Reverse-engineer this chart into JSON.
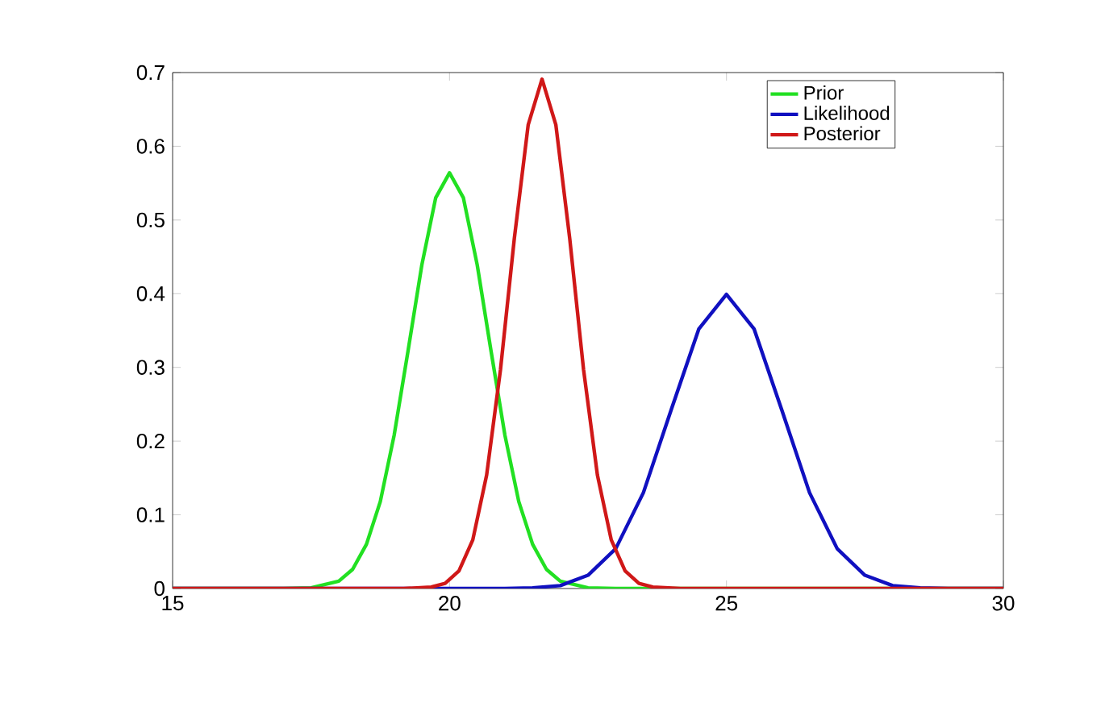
{
  "chart_data": {
    "type": "line",
    "xlim": [
      15,
      30
    ],
    "ylim": [
      0,
      0.7
    ],
    "xticks": [
      15,
      20,
      25,
      30
    ],
    "yticks": [
      0,
      0.1,
      0.2,
      0.3,
      0.4,
      0.5,
      0.6,
      0.7
    ],
    "legend": "top right",
    "grid": false,
    "series": [
      {
        "name": "Prior",
        "color": "#22e022",
        "x": [
          15,
          17,
          17.5,
          18,
          18.25,
          18.5,
          18.75,
          19,
          19.25,
          19.5,
          19.75,
          20,
          20.25,
          20.5,
          20.75,
          21,
          21.25,
          21.5,
          21.75,
          22,
          22.5,
          23,
          30
        ],
        "values": [
          0,
          0,
          0.001,
          0.01,
          0.026,
          0.06,
          0.118,
          0.208,
          0.322,
          0.439,
          0.53,
          0.564,
          0.53,
          0.439,
          0.322,
          0.208,
          0.118,
          0.06,
          0.026,
          0.01,
          0.001,
          0,
          0
        ]
      },
      {
        "name": "Likelihood",
        "color": "#1010c0",
        "x": [
          15,
          20,
          21,
          21.5,
          22,
          22.5,
          23,
          23.5,
          24,
          24.5,
          25,
          25.5,
          26,
          26.5,
          27,
          27.5,
          28,
          28.5,
          29,
          30
        ],
        "values": [
          0,
          0,
          0,
          0.001,
          0.004,
          0.018,
          0.054,
          0.13,
          0.242,
          0.352,
          0.399,
          0.352,
          0.242,
          0.13,
          0.054,
          0.018,
          0.004,
          0.001,
          0,
          0
        ]
      },
      {
        "name": "Posterior",
        "color": "#d01818",
        "x": [
          15,
          19.17,
          19.67,
          19.92,
          20.17,
          20.42,
          20.67,
          20.92,
          21.17,
          21.42,
          21.67,
          21.92,
          22.17,
          22.42,
          22.67,
          22.92,
          23.17,
          23.42,
          23.67,
          24.17,
          30
        ],
        "values": [
          0,
          0,
          0.002,
          0.007,
          0.024,
          0.066,
          0.154,
          0.297,
          0.475,
          0.629,
          0.691,
          0.629,
          0.475,
          0.297,
          0.154,
          0.066,
          0.024,
          0.007,
          0.002,
          0,
          0
        ]
      }
    ]
  }
}
